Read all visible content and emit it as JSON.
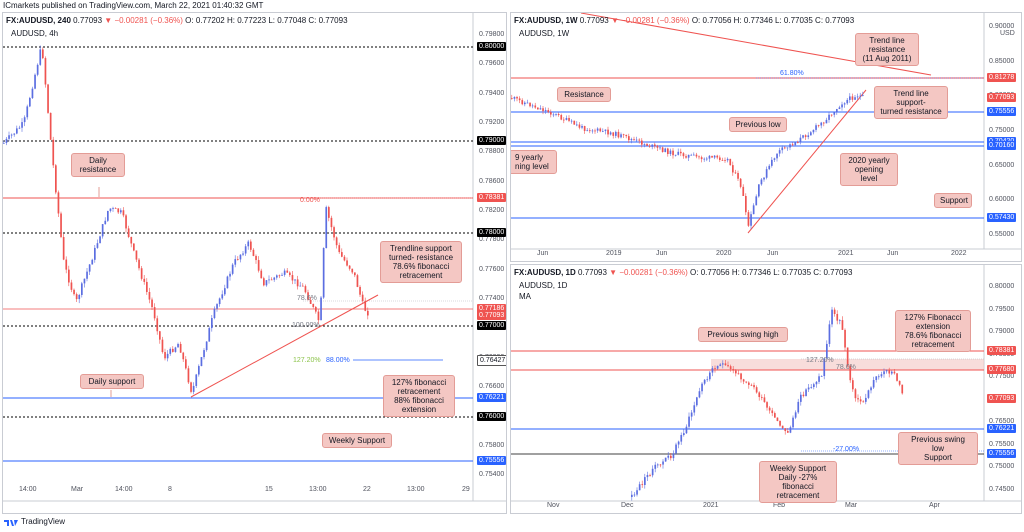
{
  "header": "ICmarkets published on TradingView.com, March 22, 2021 01:40:32 GMT",
  "footer_brand": "TradingView",
  "colors": {
    "bull": "#5b6ee1",
    "bear": "#ef5350",
    "resistance": "#ef5350",
    "support": "#2962ff",
    "bubble": "#f4c7c3"
  },
  "panel_4h": {
    "title_symbol": "FX:AUDUSD, 240",
    "title_ohlc": "0.77093",
    "title_change": "▼ −0.00281 (−0.36%)",
    "title_rest": "O: 0.77202  H: 0.77223  L: 0.77048  C: 0.77093",
    "pair_label": "AUDUSD, 4h",
    "y_ticks": [
      "0.79800",
      "0.79600",
      "0.79400",
      "0.79200",
      "0.78800",
      "0.78600",
      "0.78200",
      "0.77800",
      "0.77600",
      "0.77400",
      "0.77200",
      "0.76800",
      "0.76600",
      "0.76400",
      "0.75800",
      "0.75400"
    ],
    "price_tags": [
      {
        "v": "0.80000",
        "style": "black"
      },
      {
        "v": "0.79000",
        "style": "black"
      },
      {
        "v": "0.78381",
        "style": "red"
      },
      {
        "v": "0.78000",
        "style": "black"
      },
      {
        "v": "0.77186",
        "style": "red"
      },
      {
        "v": "0.77093",
        "style": "red"
      },
      {
        "v": "0.77000",
        "style": "black"
      },
      {
        "v": "0.76427",
        "style": "white"
      },
      {
        "v": "0.76221",
        "style": "blue"
      },
      {
        "v": "0.76000",
        "style": "black"
      },
      {
        "v": "0.75556",
        "style": "blue"
      }
    ],
    "x_ticks": [
      "14:00",
      "Mar",
      "14:00",
      "8",
      "15",
      "13:00",
      "22",
      "13:00",
      "29"
    ],
    "fib_labels": {
      "zero": "0.00%",
      "fib786": "78.6%",
      "fib100": "100.00%",
      "ext127": "127.20%",
      "ext88": "88.00%"
    },
    "bubbles": {
      "daily_resistance": "Daily\nresistance",
      "trendline": "Trendline support\nturned- resistance\n78.6% fibonacci\nretracement",
      "daily_support": "Daily support",
      "fib_ext": "127% fibonacci\nretracement\n88% fibonacci\nextension",
      "weekly_support": "Weekly Support"
    }
  },
  "panel_1w": {
    "title_symbol": "FX:AUDUSD, 1W",
    "title_ohlc": "0.77093",
    "title_change": "▼ −0.00281 (−0.36%)",
    "title_rest": "O: 0.77056  H: 0.77346  L: 0.77035  C: 0.77093",
    "pair_label": "AUDUSD, 1W",
    "currency": "USD",
    "y_ticks": [
      "0.90000",
      "0.85000",
      "0.80000",
      "0.75000",
      "0.65000",
      "0.60000",
      "0.55000"
    ],
    "price_tags": [
      {
        "v": "0.81278",
        "style": "red"
      },
      {
        "v": "0.77093",
        "style": "red"
      },
      {
        "v": "0.75556",
        "style": "blue"
      },
      {
        "v": "0.70420",
        "style": "blue"
      },
      {
        "v": "0.70160",
        "style": "blue"
      },
      {
        "v": "0.57430",
        "style": "blue"
      }
    ],
    "x_ticks": [
      "Jun",
      "2019",
      "Jun",
      "2020",
      "Jun",
      "2021",
      "Jun",
      "2022"
    ],
    "fib_label": "61.80%",
    "bubbles": {
      "trend_resistance": "Trend line\nresistance\n(11 Aug 2011)",
      "resistance": "Resistance",
      "trend_support": "Trend line\nsupport-\nturned resistance",
      "previous_low": "Previous low",
      "yearly_left": "9 yearly\nning level",
      "yearly_2020": "2020 yearly\nopening level",
      "support": "Support"
    }
  },
  "panel_1d": {
    "title_symbol": "FX:AUDUSD, 1D",
    "title_ohlc": "0.77093",
    "title_change": "▼ −0.00281 (−0.36%)",
    "title_rest": "O: 0.77056  H: 0.77346  L: 0.77035  C: 0.77093",
    "pair_label": "AUDUSD, 1D",
    "indicator": "MA",
    "y_ticks": [
      "0.80000",
      "0.79500",
      "0.79000",
      "0.78500",
      "0.77500",
      "0.77000",
      "0.76500",
      "0.75500",
      "0.75000",
      "0.74500"
    ],
    "price_tags": [
      {
        "v": "0.78381",
        "style": "red"
      },
      {
        "v": "0.77680",
        "style": "red"
      },
      {
        "v": "0.77093",
        "style": "red"
      },
      {
        "v": "0.76221",
        "style": "blue"
      },
      {
        "v": "0.75556",
        "style": "blue"
      }
    ],
    "x_ticks": [
      "Nov",
      "Dec",
      "2021",
      "Feb",
      "Mar",
      "Apr"
    ],
    "fib_labels": {
      "ext127": "127.20%",
      "fib786": "78.6%",
      "ext27": "-27.00%"
    },
    "bubbles": {
      "prev_swing_high": "Previous swing high",
      "fib127": "127% Fibonacci\nextension\n78.6% fibonacci\nretracement",
      "prev_swing_low": "Previous swing low\nSupport",
      "weekly_support": "Weekly Support\nDaily -27% fibonacci\nretracement"
    }
  }
}
